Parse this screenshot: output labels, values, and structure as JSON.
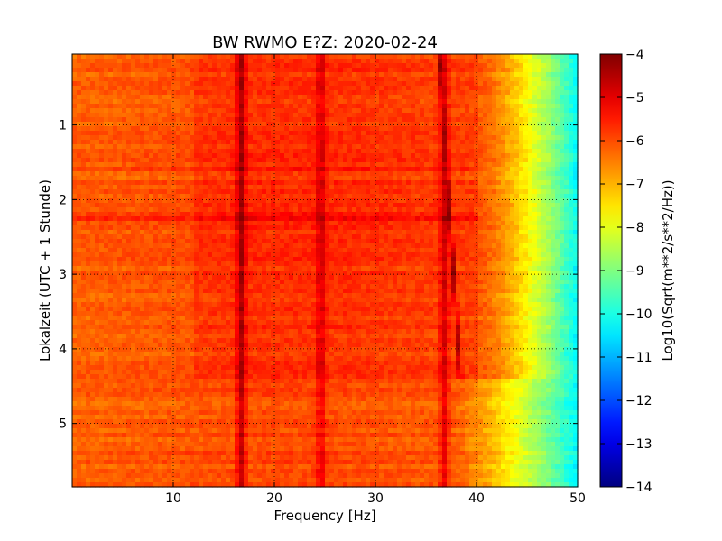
{
  "chart_data": {
    "type": "heatmap",
    "title": "BW RWMO E?Z: 2020-02-24",
    "xlabel": "Frequency [Hz]",
    "ylabel": "Lokalzeit (UTC + 1 Stunde)",
    "xlim": [
      0,
      50
    ],
    "ylim": [
      5.85,
      0.05
    ],
    "x_ticks": [
      10,
      20,
      30,
      40,
      50
    ],
    "x_tick_labels": [
      "10",
      "20",
      "30",
      "40",
      "50"
    ],
    "y_ticks": [
      1,
      2,
      3,
      4,
      5
    ],
    "y_tick_labels": [
      "1",
      "2",
      "3",
      "4",
      "5"
    ],
    "grid": true,
    "colormap": "jet",
    "colorbar": {
      "label": "Log10(Sqrt(m**2/s**2/Hz))",
      "range": [
        -14,
        -4
      ],
      "ticks": [
        -4,
        -5,
        -6,
        -7,
        -8,
        -9,
        -10,
        -11,
        -12,
        -13,
        -14
      ],
      "tick_labels": [
        "−4",
        "−5",
        "−6",
        "−7",
        "−8",
        "−9",
        "−10",
        "−11",
        "−12",
        "−13",
        "−14"
      ]
    },
    "features": {
      "background_level_low_freq": -6.2,
      "noise_level_high_freq_edge": -10.3,
      "rolloff_start_hz_before_4_4h": 40.5,
      "rolloff_start_hz_after_4_4h": 37.5,
      "regime_change_time_h": 4.42,
      "spectral_lines": [
        {
          "freq_hz": 16.7,
          "level": -4.9
        },
        {
          "freq_hz": 24.6,
          "level": -5.4
        },
        {
          "freq_hz": 36.8,
          "level": -5.2
        }
      ],
      "drifting_line": {
        "start_freq_hz": 36.3,
        "start_time_h": 0.05,
        "end_freq_hz": 38.4,
        "end_time_h": 4.4,
        "level": -4.3
      },
      "broadband_events_time_h": [
        1.6,
        1.8,
        2.22,
        2.27
      ]
    },
    "colors": {
      "jet_stops": [
        "#00007f",
        "#0000ff",
        "#007fff",
        "#00ffff",
        "#7fff7f",
        "#ffff00",
        "#ff7f00",
        "#ff0000",
        "#7f0000"
      ]
    }
  }
}
